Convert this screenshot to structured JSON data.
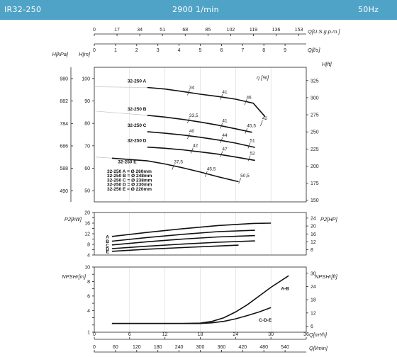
{
  "header": {
    "model": "IR32-250",
    "speed": "2900 1/min",
    "frequency": "50Hz"
  },
  "chart_data": [
    {
      "type": "line",
      "name": "head",
      "top_axis_usgpm": {
        "label": "Q[U.S.g.p.m.]",
        "ticks": [
          "0",
          "17",
          "34",
          "51",
          "68",
          "85",
          "102",
          "119",
          "136",
          "153"
        ]
      },
      "top_axis_ls": {
        "label": "Q[l/s]",
        "ticks": [
          "0",
          "1",
          "2",
          "3",
          "4",
          "5",
          "6",
          "7",
          "8",
          "9"
        ]
      },
      "left_axis_kpa": {
        "label": "H[kPa]",
        "ticks": [
          "980",
          "882",
          "784",
          "686",
          "588",
          "490"
        ]
      },
      "left_axis_m": {
        "label": "H[m]",
        "ticks": [
          "100",
          "90",
          "80",
          "70",
          "60",
          "50"
        ],
        "ylim": [
          45,
          105
        ]
      },
      "right_axis_ft": {
        "label": "H[ft]",
        "ticks": [
          "325",
          "300",
          "275",
          "250",
          "225",
          "200",
          "175",
          "150"
        ]
      },
      "efficiency_label": "η [%]",
      "series": [
        {
          "name": "32-250 A",
          "x": [
            9,
            12,
            15,
            18,
            21,
            24,
            27,
            28,
            29
          ],
          "y": [
            96,
            95.3,
            94.2,
            93,
            92,
            90.8,
            89,
            86,
            83
          ]
        },
        {
          "name": "32-250 B",
          "x": [
            9,
            12,
            15,
            18,
            21,
            24,
            26.8
          ],
          "y": [
            83.6,
            82.8,
            81.8,
            80.6,
            79.2,
            77.6,
            76
          ]
        },
        {
          "name": "32-250 C",
          "x": [
            9,
            12,
            15,
            18,
            21,
            24,
            27.3
          ],
          "y": [
            76.3,
            75.6,
            74.8,
            73.8,
            72.6,
            71.2,
            69.3
          ]
        },
        {
          "name": "32-250 D",
          "x": [
            9,
            12,
            15,
            18,
            21,
            24,
            27.3
          ],
          "y": [
            69.4,
            68.9,
            68.2,
            67.3,
            66.3,
            65,
            63.5
          ]
        },
        {
          "name": "32-250 E",
          "x": [
            3,
            9,
            12,
            15,
            18,
            21,
            24.5
          ],
          "y": [
            64.5,
            63.3,
            61.9,
            60.2,
            58.3,
            56.2,
            54
          ]
        }
      ],
      "iso_efficiency": [
        {
          "label": "34",
          "x": 16,
          "y": 93.8
        },
        {
          "label": "41",
          "x": 21.6,
          "y": 91.8
        },
        {
          "label": "46",
          "x": 25.7,
          "y": 89.4
        },
        {
          "label": "42",
          "x": 28.4,
          "y": 80.1
        },
        {
          "label": "33,5",
          "x": 16,
          "y": 81.3
        },
        {
          "label": "41",
          "x": 21.6,
          "y": 79
        },
        {
          "label": "45,5",
          "x": 25.8,
          "y": 76.7
        },
        {
          "label": "40",
          "x": 16,
          "y": 74.3
        },
        {
          "label": "44",
          "x": 21.6,
          "y": 72.5
        },
        {
          "label": "51",
          "x": 26.3,
          "y": 70.1
        },
        {
          "label": "42",
          "x": 16.6,
          "y": 67.9
        },
        {
          "label": "47",
          "x": 21.6,
          "y": 66.3
        },
        {
          "label": "52",
          "x": 26.3,
          "y": 64.4
        },
        {
          "label": "37,5",
          "x": 13.4,
          "y": 60.6
        },
        {
          "label": "45,5",
          "x": 19,
          "y": 57.4
        },
        {
          "label": "50,5",
          "x": 24.7,
          "y": 54.4
        }
      ],
      "diameter_legend": [
        "32-250 A = Ø 260mm",
        "32-250 B = Ø 248mm",
        "32-250 C = Ø 238mm",
        "32-250 D = Ø 230mm",
        "32-250 E = Ø 220mm"
      ]
    },
    {
      "type": "line",
      "name": "power",
      "left_axis": {
        "label": "P2[kW]",
        "ticks": [
          "20",
          "16",
          "12",
          "8",
          "4"
        ],
        "ylim": [
          4,
          20
        ]
      },
      "right_axis": {
        "label": "P2[HP]",
        "ticks": [
          "24",
          "20",
          "16",
          "12",
          "8"
        ]
      },
      "series": [
        {
          "name": "A",
          "x": [
            3,
            9,
            15,
            21,
            27,
            30
          ],
          "y": [
            11,
            12.5,
            13.9,
            15.1,
            15.9,
            16
          ]
        },
        {
          "name": "B",
          "x": [
            3,
            9,
            15,
            21,
            27.3
          ],
          "y": [
            9.2,
            10.6,
            11.8,
            12.8,
            13.3
          ]
        },
        {
          "name": "C",
          "x": [
            3,
            9,
            15,
            21,
            27.3
          ],
          "y": [
            7.8,
            9,
            10,
            10.8,
            11.3
          ]
        },
        {
          "name": "D",
          "x": [
            3,
            9,
            15,
            21,
            27.3
          ],
          "y": [
            6.4,
            7.3,
            8.1,
            8.8,
            9.3
          ]
        },
        {
          "name": "E",
          "x": [
            3,
            9,
            15,
            21,
            24.5
          ],
          "y": [
            5.4,
            6.2,
            6.8,
            7.4,
            7.7
          ]
        }
      ]
    },
    {
      "type": "line",
      "name": "npsh",
      "left_axis": {
        "label": "NPSHr[m]",
        "ticks": [
          "10",
          "8",
          "6",
          "4",
          "1"
        ],
        "ylim": [
          1,
          10
        ]
      },
      "right_axis": {
        "label": "NPSHr[ft]",
        "ticks": [
          "30",
          "24",
          "18",
          "12",
          "6"
        ]
      },
      "bottom_axis_m3h": {
        "label": "Q[m³/h]",
        "ticks": [
          "0",
          "6",
          "12",
          "18",
          "24",
          "30",
          "36"
        ]
      },
      "bottom_axis_lmin": {
        "label": "Q[l/min]",
        "ticks": [
          "0",
          "60",
          "120",
          "180",
          "240",
          "300",
          "360",
          "420",
          "480",
          "540"
        ]
      },
      "series": [
        {
          "name": "A-B",
          "x": [
            3,
            9,
            15,
            18,
            20,
            22,
            24,
            26,
            28,
            30,
            33
          ],
          "y": [
            2.2,
            2.2,
            2.2,
            2.25,
            2.5,
            3,
            3.8,
            4.8,
            6,
            7.2,
            8.8
          ]
        },
        {
          "name": "C-D-E",
          "x": [
            3,
            9,
            15,
            18,
            20,
            22,
            24,
            26,
            28,
            30
          ],
          "y": [
            2.2,
            2.2,
            2.2,
            2.2,
            2.3,
            2.5,
            2.85,
            3.3,
            3.8,
            4.4
          ]
        }
      ]
    }
  ]
}
